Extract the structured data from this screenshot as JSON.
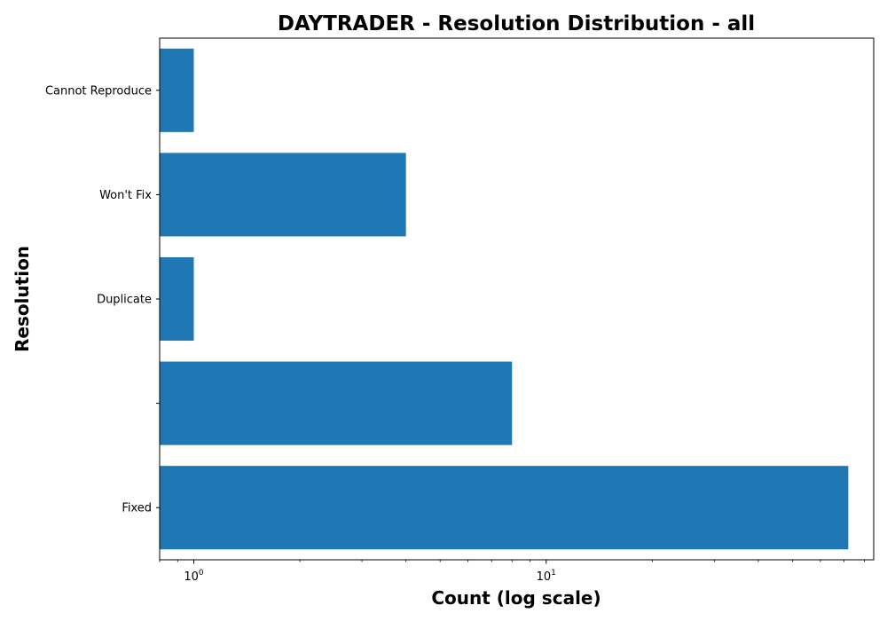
{
  "chart_data": {
    "type": "bar",
    "orientation": "horizontal",
    "title": "DAYTRADER - Resolution Distribution - all",
    "xlabel": "Count (log scale)",
    "ylabel": "Resolution",
    "xscale": "log",
    "xlim": [
      0.8,
      85
    ],
    "categories": [
      "Fixed",
      "",
      "Duplicate",
      "Won't Fix",
      "Cannot Reproduce"
    ],
    "values": [
      72,
      8,
      1,
      4,
      1
    ],
    "bar_color": "#1f77b4",
    "grid": false,
    "x_major_ticks": [
      {
        "value": 1,
        "label": "10",
        "exp": "0"
      },
      {
        "value": 10,
        "label": "10",
        "exp": "1"
      }
    ]
  }
}
